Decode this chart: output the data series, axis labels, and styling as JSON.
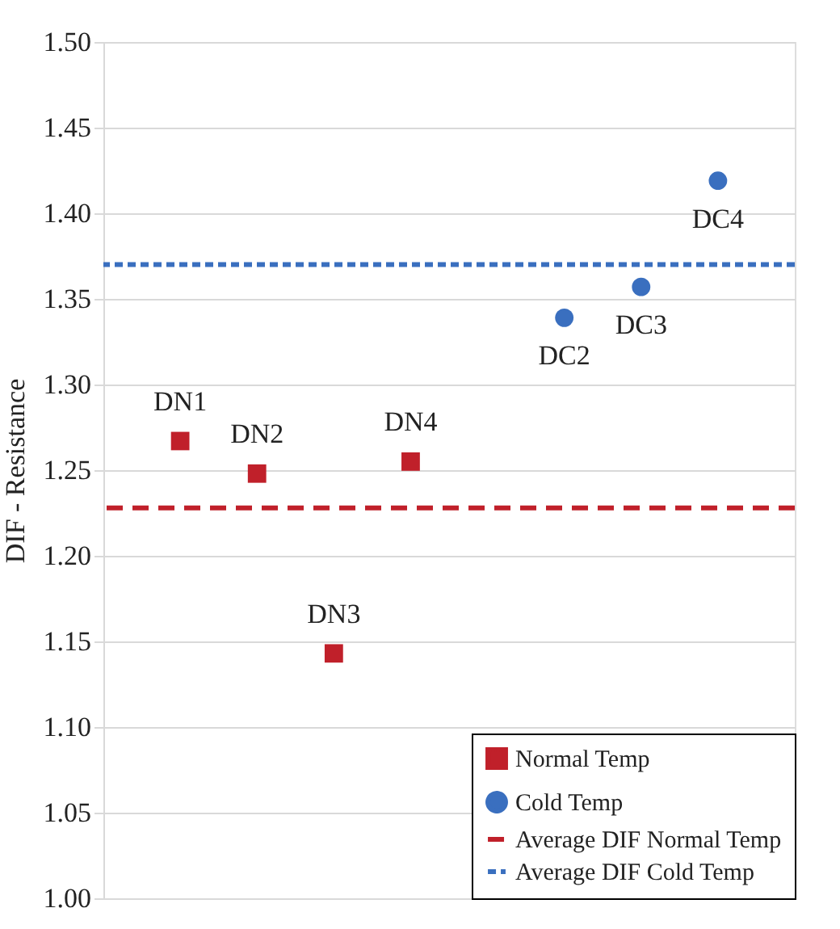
{
  "chart_data": {
    "type": "scatter",
    "ylabel": "DIF - Resistance",
    "categories": [
      null,
      null,
      null,
      null,
      null,
      null,
      null,
      null
    ],
    "series": [
      {
        "name": "Normal Temp",
        "color": "#c0202a",
        "marker": "square",
        "values": [
          1.267,
          1.248,
          1.143,
          1.255,
          null,
          null,
          null,
          null
        ]
      },
      {
        "name": "Cold Temp",
        "color": "#3a6fbf",
        "marker": "circle",
        "values": [
          null,
          null,
          null,
          null,
          null,
          1.339,
          1.357,
          1.419
        ]
      }
    ],
    "ref_lines": [
      {
        "axis": "y",
        "value": 1.228,
        "label": "Average DIF Normal Temp",
        "color": "#c0202a",
        "line_style": "dashed"
      },
      {
        "axis": "y",
        "value": 1.37,
        "label": "Average DIF Cold Temp",
        "color": "#3a6fbf",
        "line_style": "dotted"
      }
    ],
    "annotations": [
      {
        "text": "DN1",
        "y": 1.267
      },
      {
        "text": "DN2",
        "y": 1.248
      },
      {
        "text": "DN3",
        "y": 1.143
      },
      {
        "text": "DN4",
        "y": 1.255
      },
      {
        "text": "DC2",
        "y": 1.339
      },
      {
        "text": "DC3",
        "y": 1.357
      },
      {
        "text": "DC4",
        "y": 1.419
      }
    ],
    "ylim": [
      1.0,
      1.5
    ],
    "yticks": [
      {
        "value": 1.0,
        "label": "1.00"
      },
      {
        "value": 1.05,
        "label": "1.05"
      },
      {
        "value": 1.1,
        "label": "1.10"
      },
      {
        "value": 1.15,
        "label": "1.15"
      },
      {
        "value": 1.2,
        "label": "1.20"
      },
      {
        "value": 1.25,
        "label": "1.25"
      },
      {
        "value": 1.3,
        "label": "1.30"
      },
      {
        "value": 1.35,
        "label": "1.35"
      },
      {
        "value": 1.4,
        "label": "1.40"
      },
      {
        "value": 1.45,
        "label": "1.45"
      },
      {
        "value": 1.5,
        "label": "1.50"
      }
    ],
    "grid": "y",
    "legend": "bottom right",
    "tick_labels": "y"
  }
}
